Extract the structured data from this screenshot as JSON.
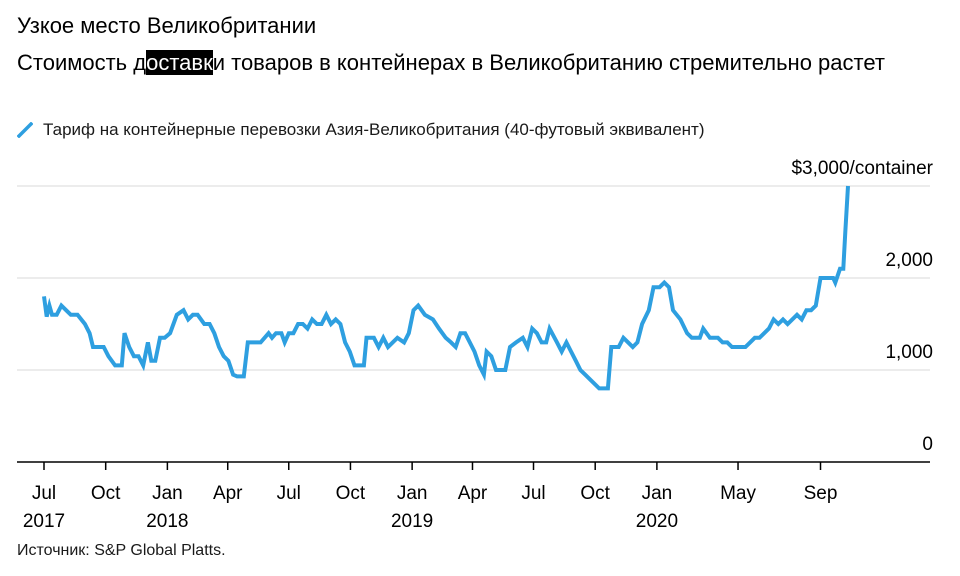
{
  "header": {
    "title": "Узкое место Великобритании",
    "subtitle_before": "Стоимость д",
    "subtitle_highlight": "оставк",
    "subtitle_after": "и товаров в контейнерах в Великобританию стремительно растет"
  },
  "legend": {
    "label": "Тариф на контейнерные перевозки Азия-Великобритания (40-футовый эквивалент)"
  },
  "source": "Источник: S&P Global Platts.",
  "colors": {
    "series": "#2e9fe0",
    "grid": "#d9d9d9",
    "axis": "#000000"
  },
  "chart_data": {
    "type": "line",
    "grid": true,
    "legend_position": "top-left",
    "ylim": [
      0,
      3000
    ],
    "y_ticks": [
      {
        "value": 0,
        "label": "0"
      },
      {
        "value": 1000,
        "label": "1,000"
      },
      {
        "value": 2000,
        "label": "2,000"
      },
      {
        "value": 3000,
        "label": "$3,000/container"
      }
    ],
    "x_ticks": [
      {
        "date": "2017-07-01",
        "label": "Jul",
        "year": "2017"
      },
      {
        "date": "2017-10-01",
        "label": "Oct",
        "year": ""
      },
      {
        "date": "2018-01-01",
        "label": "Jan",
        "year": "2018"
      },
      {
        "date": "2018-04-01",
        "label": "Apr",
        "year": ""
      },
      {
        "date": "2018-07-01",
        "label": "Jul",
        "year": ""
      },
      {
        "date": "2018-10-01",
        "label": "Oct",
        "year": ""
      },
      {
        "date": "2019-01-01",
        "label": "Jan",
        "year": "2019"
      },
      {
        "date": "2019-04-01",
        "label": "Apr",
        "year": ""
      },
      {
        "date": "2019-07-01",
        "label": "Jul",
        "year": ""
      },
      {
        "date": "2019-10-01",
        "label": "Oct",
        "year": ""
      },
      {
        "date": "2020-01-01",
        "label": "Jan",
        "year": "2020"
      },
      {
        "date": "2020-05-01",
        "label": "May",
        "year": ""
      },
      {
        "date": "2020-09-01",
        "label": "Sep",
        "year": ""
      }
    ],
    "series": [
      {
        "points": [
          [
            "2017-07-01",
            1800
          ],
          [
            "2017-07-05",
            1580
          ],
          [
            "2017-07-09",
            1700
          ],
          [
            "2017-07-13",
            1600
          ],
          [
            "2017-07-20",
            1600
          ],
          [
            "2017-07-27",
            1700
          ],
          [
            "2017-08-03",
            1650
          ],
          [
            "2017-08-10",
            1600
          ],
          [
            "2017-08-20",
            1600
          ],
          [
            "2017-08-31",
            1500
          ],
          [
            "2017-09-07",
            1400
          ],
          [
            "2017-09-12",
            1250
          ],
          [
            "2017-09-28",
            1250
          ],
          [
            "2017-10-05",
            1150
          ],
          [
            "2017-10-15",
            1050
          ],
          [
            "2017-10-25",
            1050
          ],
          [
            "2017-10-29",
            1400
          ],
          [
            "2017-11-05",
            1250
          ],
          [
            "2017-11-12",
            1150
          ],
          [
            "2017-11-19",
            1150
          ],
          [
            "2017-11-26",
            1050
          ],
          [
            "2017-12-03",
            1300
          ],
          [
            "2017-12-08",
            1100
          ],
          [
            "2017-12-14",
            1100
          ],
          [
            "2017-12-21",
            1350
          ],
          [
            "2017-12-28",
            1350
          ],
          [
            "2018-01-05",
            1400
          ],
          [
            "2018-01-15",
            1600
          ],
          [
            "2018-01-25",
            1650
          ],
          [
            "2018-02-01",
            1550
          ],
          [
            "2018-02-08",
            1600
          ],
          [
            "2018-02-15",
            1600
          ],
          [
            "2018-02-25",
            1500
          ],
          [
            "2018-03-05",
            1500
          ],
          [
            "2018-03-12",
            1400
          ],
          [
            "2018-03-19",
            1250
          ],
          [
            "2018-03-26",
            1150
          ],
          [
            "2018-04-02",
            1100
          ],
          [
            "2018-04-09",
            950
          ],
          [
            "2018-04-15",
            930
          ],
          [
            "2018-04-25",
            930
          ],
          [
            "2018-05-01",
            1300
          ],
          [
            "2018-05-20",
            1300
          ],
          [
            "2018-06-01",
            1400
          ],
          [
            "2018-06-06",
            1350
          ],
          [
            "2018-06-12",
            1400
          ],
          [
            "2018-06-20",
            1400
          ],
          [
            "2018-06-25",
            1300
          ],
          [
            "2018-07-01",
            1400
          ],
          [
            "2018-07-08",
            1400
          ],
          [
            "2018-07-15",
            1500
          ],
          [
            "2018-07-22",
            1500
          ],
          [
            "2018-07-29",
            1450
          ],
          [
            "2018-08-05",
            1550
          ],
          [
            "2018-08-12",
            1500
          ],
          [
            "2018-08-19",
            1500
          ],
          [
            "2018-08-26",
            1600
          ],
          [
            "2018-09-02",
            1500
          ],
          [
            "2018-09-09",
            1550
          ],
          [
            "2018-09-16",
            1500
          ],
          [
            "2018-09-23",
            1300
          ],
          [
            "2018-09-30",
            1200
          ],
          [
            "2018-10-07",
            1050
          ],
          [
            "2018-10-21",
            1050
          ],
          [
            "2018-10-25",
            1350
          ],
          [
            "2018-11-05",
            1350
          ],
          [
            "2018-11-12",
            1250
          ],
          [
            "2018-11-19",
            1350
          ],
          [
            "2018-11-26",
            1250
          ],
          [
            "2018-12-03",
            1300
          ],
          [
            "2018-12-10",
            1350
          ],
          [
            "2018-12-20",
            1300
          ],
          [
            "2018-12-27",
            1400
          ],
          [
            "2019-01-03",
            1650
          ],
          [
            "2019-01-10",
            1700
          ],
          [
            "2019-01-20",
            1600
          ],
          [
            "2019-02-01",
            1550
          ],
          [
            "2019-02-10",
            1450
          ],
          [
            "2019-02-20",
            1350
          ],
          [
            "2019-02-28",
            1300
          ],
          [
            "2019-03-07",
            1250
          ],
          [
            "2019-03-14",
            1400
          ],
          [
            "2019-03-21",
            1400
          ],
          [
            "2019-03-28",
            1300
          ],
          [
            "2019-04-04",
            1200
          ],
          [
            "2019-04-11",
            1050
          ],
          [
            "2019-04-18",
            950
          ],
          [
            "2019-04-22",
            1200
          ],
          [
            "2019-04-29",
            1150
          ],
          [
            "2019-05-06",
            1000
          ],
          [
            "2019-05-20",
            1000
          ],
          [
            "2019-05-27",
            1250
          ],
          [
            "2019-06-05",
            1300
          ],
          [
            "2019-06-15",
            1350
          ],
          [
            "2019-06-22",
            1250
          ],
          [
            "2019-06-29",
            1450
          ],
          [
            "2019-07-06",
            1400
          ],
          [
            "2019-07-13",
            1300
          ],
          [
            "2019-07-20",
            1300
          ],
          [
            "2019-07-25",
            1450
          ],
          [
            "2019-08-05",
            1300
          ],
          [
            "2019-08-12",
            1200
          ],
          [
            "2019-08-19",
            1300
          ],
          [
            "2019-08-26",
            1200
          ],
          [
            "2019-09-02",
            1100
          ],
          [
            "2019-09-09",
            1000
          ],
          [
            "2019-09-16",
            950
          ],
          [
            "2019-09-23",
            900
          ],
          [
            "2019-10-07",
            800
          ],
          [
            "2019-10-20",
            800
          ],
          [
            "2019-10-25",
            1250
          ],
          [
            "2019-11-05",
            1250
          ],
          [
            "2019-11-12",
            1350
          ],
          [
            "2019-11-19",
            1300
          ],
          [
            "2019-11-26",
            1250
          ],
          [
            "2019-12-03",
            1300
          ],
          [
            "2019-12-10",
            1500
          ],
          [
            "2019-12-20",
            1650
          ],
          [
            "2019-12-27",
            1900
          ],
          [
            "2020-01-05",
            1900
          ],
          [
            "2020-01-12",
            1950
          ],
          [
            "2020-01-19",
            1900
          ],
          [
            "2020-01-25",
            1650
          ],
          [
            "2020-02-05",
            1550
          ],
          [
            "2020-02-15",
            1400
          ],
          [
            "2020-02-22",
            1350
          ],
          [
            "2020-03-05",
            1350
          ],
          [
            "2020-03-10",
            1450
          ],
          [
            "2020-03-20",
            1350
          ],
          [
            "2020-04-01",
            1350
          ],
          [
            "2020-04-08",
            1300
          ],
          [
            "2020-04-15",
            1300
          ],
          [
            "2020-04-22",
            1250
          ],
          [
            "2020-05-05",
            1250
          ],
          [
            "2020-05-12",
            1250
          ],
          [
            "2020-05-19",
            1300
          ],
          [
            "2020-05-26",
            1350
          ],
          [
            "2020-06-02",
            1350
          ],
          [
            "2020-06-09",
            1400
          ],
          [
            "2020-06-16",
            1450
          ],
          [
            "2020-06-23",
            1550
          ],
          [
            "2020-06-30",
            1500
          ],
          [
            "2020-07-07",
            1550
          ],
          [
            "2020-07-14",
            1500
          ],
          [
            "2020-07-21",
            1550
          ],
          [
            "2020-07-28",
            1600
          ],
          [
            "2020-08-04",
            1550
          ],
          [
            "2020-08-11",
            1650
          ],
          [
            "2020-08-18",
            1650
          ],
          [
            "2020-08-25",
            1700
          ],
          [
            "2020-09-01",
            2000
          ],
          [
            "2020-09-10",
            2000
          ],
          [
            "2020-09-20",
            2000
          ],
          [
            "2020-09-23",
            1950
          ],
          [
            "2020-09-30",
            2100
          ],
          [
            "2020-10-05",
            2100
          ],
          [
            "2020-10-08",
            2500
          ],
          [
            "2020-10-12",
            3000
          ]
        ]
      }
    ]
  }
}
